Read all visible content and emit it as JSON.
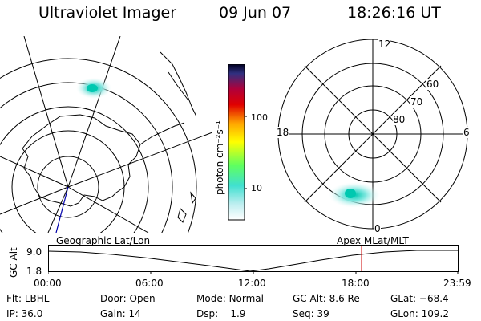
{
  "header": {
    "title": "Ultraviolet Imager",
    "date": "09 Jun 07",
    "time": "18:26:16 UT"
  },
  "colorbar": {
    "label": "photon cm⁻²s⁻¹",
    "ticks": [
      "100",
      "10"
    ]
  },
  "polar_plot": {
    "mlt_labels": {
      "top": "12",
      "left": "18",
      "right": "6",
      "bottom": "0"
    },
    "lat_labels": [
      "60",
      "70",
      "80"
    ]
  },
  "timeline": {
    "left_title": "Geographic Lat/Lon",
    "right_title": "Apex MLat/MLT",
    "y_label": "GC Alt",
    "y_ticks": [
      "9.0",
      "1.8"
    ],
    "x_ticks": [
      "00:00",
      "06:00",
      "12:00",
      "18:00",
      "23:59"
    ],
    "marker_time": "18:26"
  },
  "info": {
    "flt_label": "Flt:",
    "flt": "LBHL",
    "ip_label": "IP:",
    "ip": "36.0",
    "door_label": "Door:",
    "door": "Open",
    "gain_label": "Gain:",
    "gain": "14",
    "mode_label": "Mode:",
    "mode": "Normal",
    "dsp_label": "Dsp:",
    "dsp": "1.9",
    "gcalt_label": "GC Alt:",
    "gcalt": "8.6 Re",
    "seq_label": "Seq:",
    "seq": "39",
    "glat_label": "GLat:",
    "glat": "−68.4",
    "glon_label": "GLon:",
    "glon": "109.2"
  },
  "colors": {
    "marker": "#cc0000",
    "track": "#0000aa"
  }
}
